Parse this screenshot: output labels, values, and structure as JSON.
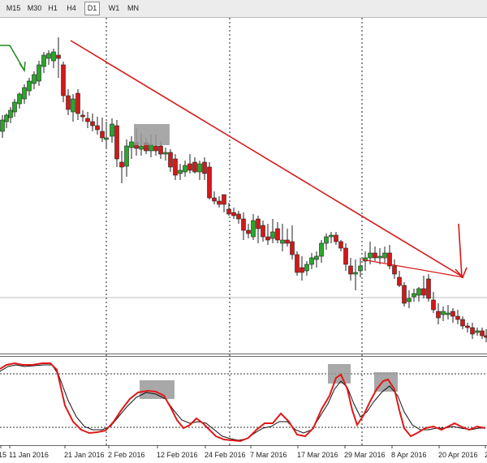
{
  "timeframes": [
    {
      "label": "M15",
      "active": false
    },
    {
      "label": "M30",
      "active": false
    },
    {
      "label": "H1",
      "active": false
    },
    {
      "label": "H4",
      "active": false
    },
    {
      "label": "D1",
      "active": true
    },
    {
      "label": "W1",
      "active": false
    },
    {
      "label": "MN",
      "active": false
    }
  ],
  "chart_data": {
    "type": "candlestick",
    "x_tick_labels": [
      "15",
      "11 Jan 2016",
      "21 Jan 2016",
      "2 Feb 2016",
      "12 Feb 2016",
      "24 Feb 2016",
      "7 Mar 2016",
      "17 Mar 2016",
      "29 Mar 2016",
      "8 Apr 2016",
      "20 Apr 2016",
      "2"
    ],
    "price_axis_visible": false,
    "grid": "dotted vertical separators",
    "colors": {
      "bull": "#28a828",
      "bear": "#d41818",
      "wick": "#222222",
      "trendline": "#d41818",
      "arrow_green": "#1f8a1f",
      "highlight": "#999999",
      "stoch_main": "#e01818",
      "stoch_signal": "#111111"
    },
    "indicator": {
      "name": "stochastic",
      "levels_shown": [
        "upper dashed",
        "lower dashed"
      ]
    }
  }
}
